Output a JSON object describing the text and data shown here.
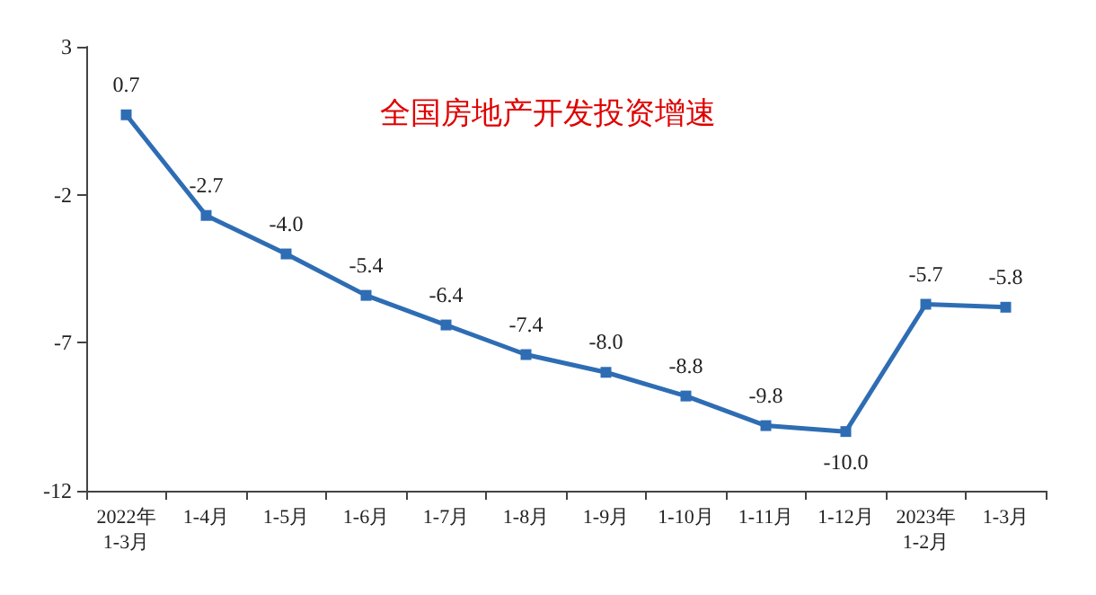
{
  "chart_data": {
    "type": "line",
    "title": "全国房地产开发投资增速",
    "categories": [
      "2022年\n1-3月",
      "1-4月",
      "1-5月",
      "1-6月",
      "1-7月",
      "1-8月",
      "1-9月",
      "1-10月",
      "1-11月",
      "1-12月",
      "2023年\n1-2月",
      "1-3月"
    ],
    "values": [
      0.7,
      -2.7,
      -4.0,
      -5.4,
      -6.4,
      -7.4,
      -8.0,
      -8.8,
      -9.8,
      -10.0,
      -5.7,
      -5.8
    ],
    "value_labels": [
      "0.7",
      "-2.7",
      "-4.0",
      "-5.4",
      "-6.4",
      "-7.4",
      "-8.0",
      "-8.8",
      "-9.8",
      "-10.0",
      "-5.7",
      "-5.8"
    ],
    "color": "#2e6db4",
    "marker": "square",
    "line_style": "solid",
    "ylim": [
      -12,
      3
    ],
    "yticks": [
      -12,
      -7,
      -2,
      3
    ],
    "grid": false
  }
}
